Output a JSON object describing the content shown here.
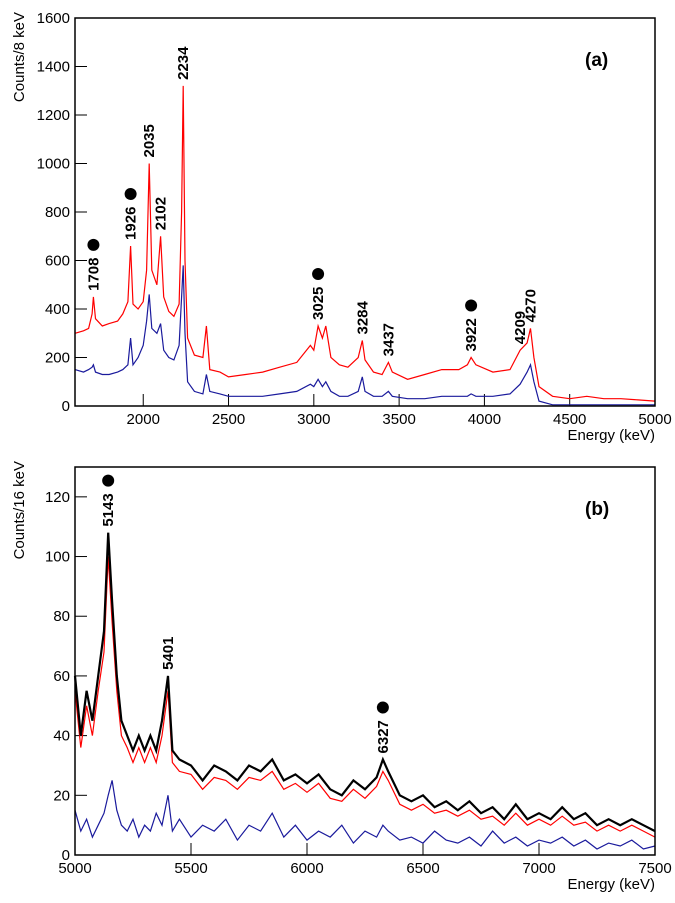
{
  "chart_data": [
    {
      "type": "line",
      "panel_label": "(a)",
      "ylabel": "Counts/8 keV",
      "xlabel": "Energy (keV)",
      "xlim": [
        1600,
        5000
      ],
      "xticks": [
        2000,
        2500,
        3000,
        3500,
        4000,
        4500,
        5000
      ],
      "ylim": [
        0,
        1600
      ],
      "yticks": [
        0,
        200,
        400,
        600,
        800,
        1000,
        1200,
        1400,
        1600
      ],
      "x": [
        1600,
        1650,
        1680,
        1700,
        1708,
        1720,
        1760,
        1800,
        1850,
        1880,
        1910,
        1926,
        1940,
        1970,
        2000,
        2020,
        2035,
        2050,
        2080,
        2102,
        2120,
        2150,
        2180,
        2210,
        2225,
        2234,
        2245,
        2260,
        2300,
        2350,
        2370,
        2390,
        2450,
        2500,
        2600,
        2700,
        2800,
        2900,
        2980,
        3000,
        3025,
        3050,
        3070,
        3100,
        3150,
        3200,
        3260,
        3284,
        3300,
        3350,
        3400,
        3437,
        3460,
        3550,
        3650,
        3750,
        3850,
        3900,
        3922,
        3950,
        4050,
        4150,
        4209,
        4250,
        4270,
        4290,
        4320,
        4400,
        4500,
        4600,
        4700,
        4800,
        4900,
        5000
      ],
      "series": [
        {
          "color": "#ff0000",
          "values": [
            300,
            310,
            320,
            380,
            450,
            360,
            330,
            340,
            350,
            380,
            430,
            660,
            420,
            400,
            430,
            560,
            1000,
            560,
            500,
            700,
            450,
            390,
            370,
            420,
            800,
            1320,
            600,
            280,
            210,
            200,
            330,
            150,
            140,
            120,
            130,
            140,
            160,
            180,
            250,
            230,
            330,
            280,
            330,
            200,
            170,
            160,
            200,
            270,
            190,
            140,
            130,
            180,
            140,
            110,
            130,
            150,
            150,
            170,
            200,
            170,
            140,
            150,
            230,
            260,
            320,
            200,
            80,
            40,
            30,
            40,
            30,
            30,
            25,
            20
          ]
        },
        {
          "color": "#1a1a9c",
          "values": [
            150,
            140,
            150,
            160,
            170,
            140,
            130,
            130,
            140,
            150,
            170,
            280,
            170,
            200,
            250,
            350,
            460,
            320,
            300,
            340,
            230,
            200,
            190,
            250,
            450,
            580,
            300,
            100,
            60,
            50,
            130,
            60,
            50,
            40,
            40,
            40,
            50,
            60,
            90,
            80,
            110,
            80,
            100,
            60,
            40,
            40,
            60,
            120,
            60,
            40,
            40,
            60,
            40,
            30,
            30,
            40,
            40,
            40,
            50,
            40,
            40,
            50,
            90,
            140,
            170,
            100,
            20,
            5,
            5,
            5,
            5,
            5,
            5,
            5
          ]
        }
      ],
      "peaks": [
        {
          "energy": 1708,
          "dot": true
        },
        {
          "energy": 1926,
          "dot": true
        },
        {
          "energy": 2035,
          "dot": false
        },
        {
          "energy": 2102,
          "dot": false
        },
        {
          "energy": 2234,
          "dot": false
        },
        {
          "energy": 3025,
          "dot": true
        },
        {
          "energy": 3284,
          "dot": false
        },
        {
          "energy": 3437,
          "dot": false
        },
        {
          "energy": 3922,
          "dot": true
        },
        {
          "energy": 4209,
          "dot": false
        },
        {
          "energy": 4270,
          "dot": false
        }
      ]
    },
    {
      "type": "line",
      "panel_label": "(b)",
      "ylabel": "Counts/16 keV",
      "xlabel": "Energy (keV)",
      "xlim": [
        5000,
        7500
      ],
      "xticks": [
        5000,
        5500,
        6000,
        6500,
        7000,
        7500
      ],
      "ylim": [
        0,
        130
      ],
      "yticks": [
        0,
        20,
        40,
        60,
        80,
        100,
        120
      ],
      "x": [
        5000,
        5025,
        5050,
        5075,
        5100,
        5125,
        5143,
        5160,
        5180,
        5200,
        5225,
        5250,
        5275,
        5300,
        5325,
        5350,
        5375,
        5401,
        5420,
        5450,
        5500,
        5550,
        5600,
        5650,
        5700,
        5750,
        5800,
        5850,
        5900,
        5950,
        6000,
        6050,
        6100,
        6150,
        6200,
        6250,
        6300,
        6327,
        6350,
        6400,
        6450,
        6500,
        6550,
        6600,
        6650,
        6700,
        6750,
        6800,
        6850,
        6900,
        6950,
        7000,
        7050,
        7100,
        7150,
        7200,
        7250,
        7300,
        7350,
        7400,
        7450,
        7500
      ],
      "series": [
        {
          "color": "#1a1a9c",
          "values": [
            15,
            8,
            12,
            6,
            10,
            14,
            20,
            25,
            15,
            10,
            8,
            12,
            6,
            10,
            8,
            14,
            10,
            20,
            8,
            12,
            6,
            10,
            8,
            12,
            5,
            10,
            8,
            14,
            6,
            10,
            5,
            8,
            6,
            10,
            4,
            8,
            6,
            10,
            8,
            5,
            6,
            4,
            8,
            5,
            4,
            6,
            3,
            8,
            4,
            6,
            3,
            5,
            4,
            6,
            3,
            5,
            2,
            4,
            3,
            5,
            2,
            3
          ]
        },
        {
          "color": "#ff0000",
          "values": [
            55,
            36,
            50,
            40,
            55,
            68,
            100,
            78,
            55,
            40,
            36,
            31,
            36,
            31,
            36,
            31,
            40,
            55,
            31,
            28,
            27,
            22,
            26,
            25,
            22,
            26,
            25,
            28,
            22,
            24,
            21,
            24,
            19,
            18,
            22,
            19,
            23,
            28,
            25,
            17,
            15,
            17,
            14,
            15,
            13,
            15,
            12,
            13,
            10,
            14,
            10,
            12,
            10,
            13,
            10,
            11,
            8,
            10,
            8,
            10,
            8,
            6
          ]
        },
        {
          "color": "#000000",
          "values": [
            60,
            40,
            55,
            45,
            60,
            75,
            108,
            85,
            60,
            45,
            40,
            35,
            40,
            35,
            40,
            35,
            45,
            60,
            35,
            32,
            30,
            25,
            30,
            28,
            25,
            30,
            28,
            32,
            25,
            27,
            24,
            27,
            22,
            20,
            25,
            22,
            26,
            32,
            28,
            20,
            18,
            20,
            16,
            18,
            15,
            18,
            14,
            16,
            12,
            17,
            12,
            14,
            12,
            16,
            12,
            14,
            10,
            12,
            10,
            12,
            10,
            8
          ]
        }
      ],
      "peaks": [
        {
          "energy": 5143,
          "dot": true
        },
        {
          "energy": 5401,
          "dot": false
        },
        {
          "energy": 6327,
          "dot": true
        }
      ]
    }
  ]
}
